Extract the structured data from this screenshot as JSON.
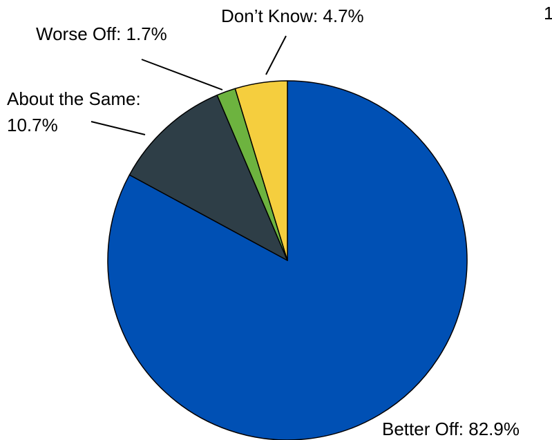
{
  "chart_data": {
    "type": "pie",
    "title": "",
    "categories": [
      "Better Off",
      "About the Same",
      "Worse Off",
      "Don’t Know"
    ],
    "values": [
      82.9,
      10.7,
      1.7,
      4.7
    ],
    "unit": "%",
    "colors": [
      "#0050B4",
      "#2E3E47",
      "#6DB33F",
      "#F5CE3E"
    ],
    "start_angle_deg": 0,
    "direction": "clockwise",
    "labels": {
      "better_off": "Better Off: 82.9%",
      "about_same_line1": "About the Same:",
      "about_same_line2": "10.7%",
      "worse_off": "Worse Off: 1.7%",
      "dont_know": "Don’t Know: 4.7%"
    },
    "corner_fragment": "1"
  }
}
